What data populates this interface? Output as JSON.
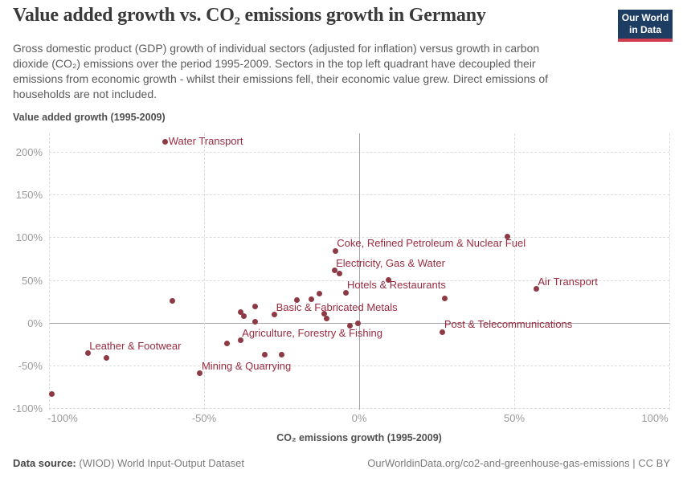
{
  "header": {
    "title": "Value added growth vs. CO₂ emissions growth in Germany",
    "subtitle_lines": [
      "Gross domestic product (GDP) growth of individual sectors (adjusted for inflation) versus growth in carbon",
      "dioxide (CO₂) emissions over the period 1995-2009. Sectors in the top left quadrant have decoupled their",
      "emissions from economic growth - whilst their emissions fell, their economic value grew. Direct emissions of",
      "households are not included."
    ],
    "logo": {
      "line1": "Our World",
      "line2": "in Data"
    }
  },
  "chart_data": {
    "type": "scatter",
    "title": "Value added growth vs. CO₂ emissions growth in Germany",
    "xlabel": "CO₂ emissions growth (1995-2009)",
    "ylabel": "Value added growth (1995-2009)",
    "xlim": [
      -100,
      100
    ],
    "ylim": [
      -101.5,
      221.5
    ],
    "grid": "dashed",
    "zero_lines": true,
    "x_ticks": [
      {
        "value": -100,
        "label": "-100%"
      },
      {
        "value": -50,
        "label": "-50%"
      },
      {
        "value": 0,
        "label": "0%"
      },
      {
        "value": 50,
        "label": "50%"
      },
      {
        "value": 100,
        "label": "100%"
      }
    ],
    "y_ticks": [
      {
        "value": 200,
        "label": "200%"
      },
      {
        "value": 150,
        "label": "150%"
      },
      {
        "value": 100,
        "label": "100%"
      },
      {
        "value": 50,
        "label": "50%"
      },
      {
        "value": 0,
        "label": "0%"
      },
      {
        "value": -50,
        "label": "-50%"
      },
      {
        "value": -100,
        "label": "-100%"
      }
    ],
    "colors": {
      "point": "#8e3a45",
      "point_label": "#9a2a3f"
    },
    "points": [
      {
        "label": "Water Transport",
        "x": -62.5,
        "y": 212,
        "label_position": "right"
      },
      {
        "label": "Coke, Refined Petroleum & Nuclear Fuel",
        "x": -7.7,
        "y": 84,
        "label_position": "above-right"
      },
      {
        "label": "Electricity, Gas & Water",
        "x": -8,
        "y": 61,
        "label_position": "above-right"
      },
      {
        "label": "Hotels & Restaurants",
        "x": -4.4,
        "y": 35.5,
        "label_position": "above-right"
      },
      {
        "label": "Basic & Fabricated Metals",
        "x": -27.3,
        "y": 9.5,
        "label_position": "above-right"
      },
      {
        "label": "Agriculture, Forestry & Fishing",
        "x": -38.3,
        "y": -20.5,
        "label_position": "above-right"
      },
      {
        "label": "Leather & Footwear",
        "x": -87.5,
        "y": -35.5,
        "label_position": "above-right"
      },
      {
        "label": "Mining & Quarrying",
        "x": -51.3,
        "y": -59,
        "label_position": "above-right"
      },
      {
        "label": "Air Transport",
        "x": 57.1,
        "y": 39.5,
        "label_position": "above-right"
      },
      {
        "label": "Post & Telecommunications",
        "x": 26.9,
        "y": -10.5,
        "label_position": "above-right"
      },
      {
        "label": "",
        "x": 47.8,
        "y": 100.5
      },
      {
        "label": "",
        "x": 9.4,
        "y": 50
      },
      {
        "label": "",
        "x": 27.6,
        "y": 29
      },
      {
        "label": "",
        "x": -6.3,
        "y": 57.5
      },
      {
        "label": "",
        "x": -60.3,
        "y": 25.5
      },
      {
        "label": "",
        "x": -20.2,
        "y": 27
      },
      {
        "label": "",
        "x": -15.4,
        "y": 28
      },
      {
        "label": "",
        "x": -12.9,
        "y": 34
      },
      {
        "label": "",
        "x": -33.5,
        "y": 19.5
      },
      {
        "label": "",
        "x": -38.1,
        "y": 12.5
      },
      {
        "label": "",
        "x": -37.2,
        "y": 8
      },
      {
        "label": "",
        "x": -11.3,
        "y": 10.5
      },
      {
        "label": "",
        "x": -10.4,
        "y": 5.5
      },
      {
        "label": "",
        "x": -0.3,
        "y": -0.5
      },
      {
        "label": "",
        "x": -3.1,
        "y": -3.5
      },
      {
        "label": "",
        "x": -33.6,
        "y": 1
      },
      {
        "label": "",
        "x": -42.6,
        "y": -24.5
      },
      {
        "label": "",
        "x": -30.5,
        "y": -37.5
      },
      {
        "label": "",
        "x": -25.1,
        "y": -37
      },
      {
        "label": "",
        "x": -81.4,
        "y": -41
      },
      {
        "label": "",
        "x": -99,
        "y": -83
      }
    ]
  },
  "footer": {
    "source_label": "Data source:",
    "source_text": " (WIOD) World Input-Output Dataset",
    "attribution": "OurWorldinData.org/co2-and-greenhouse-gas-emissions | CC BY"
  }
}
